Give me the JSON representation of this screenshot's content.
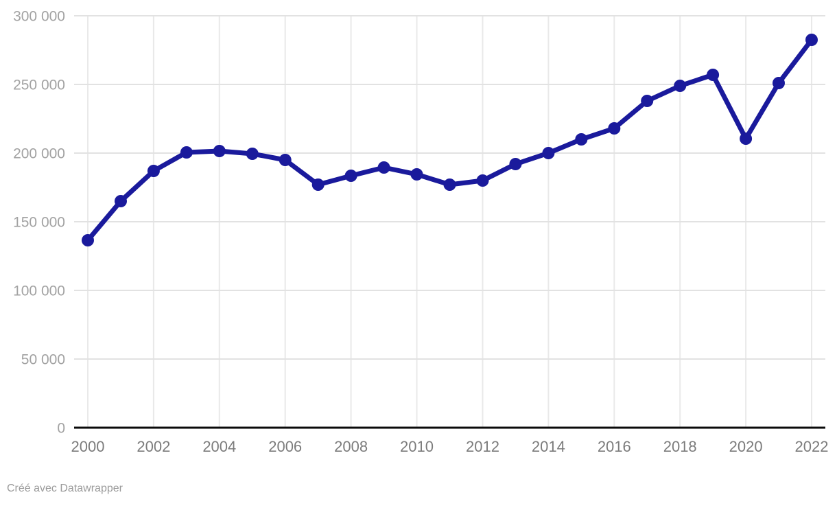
{
  "chart_data": {
    "type": "line",
    "title": "",
    "xlabel": "",
    "ylabel": "",
    "x": [
      2000,
      2001,
      2002,
      2003,
      2004,
      2005,
      2006,
      2007,
      2008,
      2009,
      2010,
      2011,
      2012,
      2013,
      2014,
      2015,
      2016,
      2017,
      2018,
      2019,
      2020,
      2021,
      2022
    ],
    "values": [
      136500,
      165000,
      187000,
      200500,
      201500,
      199500,
      195000,
      177000,
      183500,
      189500,
      184500,
      177000,
      180000,
      192000,
      200000,
      210000,
      218000,
      238000,
      249000,
      257000,
      210500,
      251000,
      282500
    ],
    "xlim": [
      2000,
      2022
    ],
    "ylim": [
      0,
      300000
    ],
    "xticks": {
      "values": [
        2000,
        2002,
        2004,
        2006,
        2008,
        2010,
        2012,
        2014,
        2016,
        2018,
        2020,
        2022
      ],
      "labels": [
        "2000",
        "2002",
        "2004",
        "2006",
        "2008",
        "2010",
        "2012",
        "2014",
        "2016",
        "2018",
        "2020",
        "2022"
      ]
    },
    "yticks": {
      "values": [
        0,
        50000,
        100000,
        150000,
        200000,
        250000,
        300000
      ],
      "labels": [
        "0",
        "50 000",
        "100 000",
        "150 000",
        "200 000",
        "250 000",
        "300 000"
      ]
    },
    "grid": true,
    "legend": "none",
    "line_width": 7,
    "point_radius": 9
  },
  "colors": {
    "line": "#1a1a9c",
    "grid_horizontal": "#e2e2e2",
    "grid_vertical": "#e9e9e9",
    "axis_baseline": "#0a0a0a",
    "ytick_label": "#a2a2a2",
    "xtick_label": "#7c7c7c",
    "credit_text": "#9b9b9b",
    "background": "#ffffff"
  },
  "footer": {
    "credit": "Créé avec Datawrapper"
  }
}
